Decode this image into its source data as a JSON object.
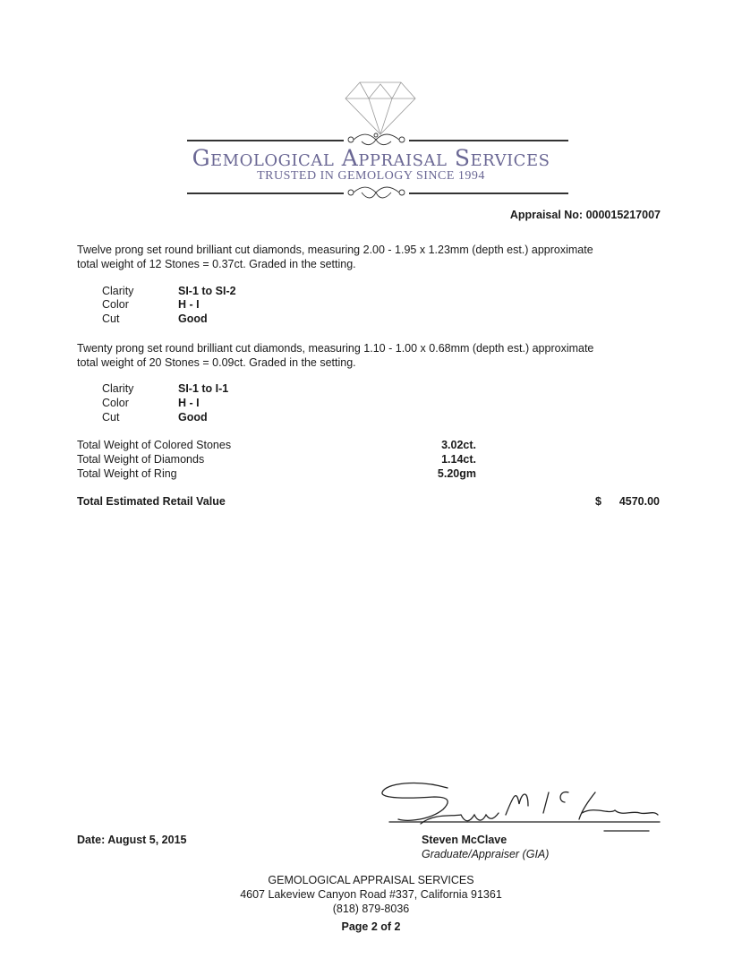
{
  "header": {
    "company": "Gemological Appraisal Services",
    "tagline": "TRUSTED IN GEMOLOGY SINCE 1994",
    "brand_color": "#6a6794",
    "appraisal_no": "Appraisal No: 000015217007"
  },
  "sections": [
    {
      "description_line1": "Twelve prong set round brilliant cut diamonds, measuring 2.00 - 1.95 x 1.23mm (depth est.) approximate",
      "description_line2": "total weight of 12 Stones = 0.37ct. Graded in the setting.",
      "grades": [
        {
          "label": "Clarity",
          "value": "SI-1 to SI-2"
        },
        {
          "label": "Color",
          "value": "H - I"
        },
        {
          "label": "Cut",
          "value": "Good"
        }
      ]
    },
    {
      "description_line1": "Twenty prong set round brilliant cut diamonds, measuring 1.10 - 1.00 x 0.68mm (depth est.) approximate",
      "description_line2": "total weight of 20 Stones = 0.09ct. Graded in the setting.",
      "grades": [
        {
          "label": "Clarity",
          "value": "SI-1 to I-1"
        },
        {
          "label": "Color",
          "value": "H - I"
        },
        {
          "label": "Cut",
          "value": "Good"
        }
      ]
    }
  ],
  "totals": [
    {
      "label": "Total Weight of Colored Stones",
      "value": "3.02ct."
    },
    {
      "label": "Total Weight of Diamonds",
      "value": "1.14ct."
    },
    {
      "label": "Total Weight of Ring",
      "value": "5.20gm"
    }
  ],
  "retail": {
    "label": "Total Estimated Retail Value",
    "currency": "$",
    "amount": "4570.00"
  },
  "date": "Date: August 5, 2015",
  "appraiser": {
    "name": "Steven McClave",
    "title": "Graduate/Appraiser (GIA)"
  },
  "footer": {
    "company": "GEMOLOGICAL APPRAISAL SERVICES",
    "address": "4607 Lakeview Canyon Road #337, California 91361",
    "phone": "(818) 879-8036",
    "page": "Page 2 of 2"
  }
}
